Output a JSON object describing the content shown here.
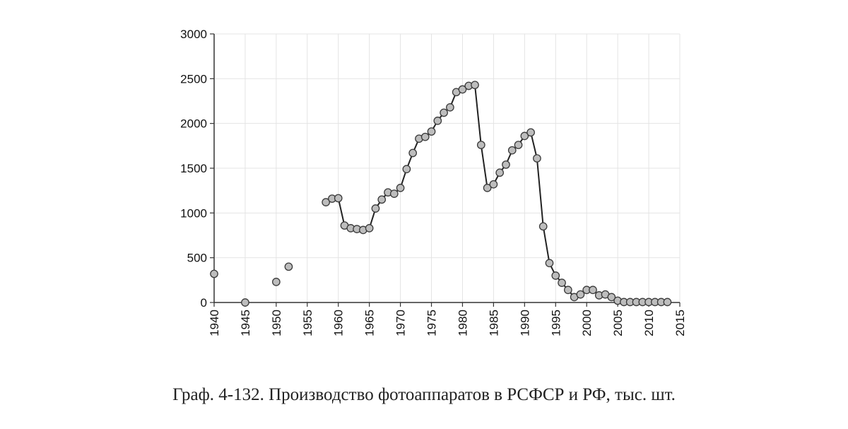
{
  "caption": "Граф. 4-132. Производство фотоаппаратов в РСФСР и РФ, тыс. шт.",
  "colors": {
    "line": "#222222",
    "marker_fill": "#bdbdbd",
    "marker_stroke": "#3a3a3a",
    "grid": "#e4e4e4"
  },
  "chart_data": {
    "type": "line",
    "title": "",
    "xlabel": "",
    "ylabel": "",
    "xlim": [
      1940,
      2015
    ],
    "ylim": [
      0,
      3000
    ],
    "x_ticks": [
      "1940",
      "1945",
      "1950",
      "1955",
      "1960",
      "1965",
      "1970",
      "1975",
      "1980",
      "1985",
      "1990",
      "1995",
      "2000",
      "2005",
      "2010",
      "2015"
    ],
    "y_ticks": [
      "0",
      "500",
      "1000",
      "1500",
      "2000",
      "2500",
      "3000"
    ],
    "grid": true,
    "markers": true,
    "x": [
      1940,
      1945,
      1950,
      1952,
      1958,
      1959,
      1960,
      1961,
      1962,
      1963,
      1964,
      1965,
      1966,
      1967,
      1968,
      1969,
      1970,
      1971,
      1972,
      1973,
      1974,
      1975,
      1976,
      1977,
      1978,
      1979,
      1980,
      1981,
      1982,
      1983,
      1984,
      1985,
      1986,
      1987,
      1988,
      1989,
      1990,
      1991,
      1992,
      1993,
      1994,
      1995,
      1996,
      1997,
      1998,
      1999,
      2000,
      2001,
      2002,
      2003,
      2004,
      2005,
      2006,
      2007,
      2008,
      2009,
      2010,
      2011,
      2012,
      2013
    ],
    "y": [
      320,
      0,
      230,
      400,
      1120,
      1160,
      1165,
      860,
      830,
      820,
      810,
      830,
      1050,
      1150,
      1230,
      1215,
      1280,
      1490,
      1670,
      1830,
      1850,
      1910,
      2030,
      2120,
      2180,
      2350,
      2380,
      2420,
      2430,
      1760,
      1280,
      1320,
      1450,
      1540,
      1700,
      1760,
      1860,
      1900,
      1610,
      850,
      440,
      300,
      220,
      140,
      60,
      90,
      140,
      140,
      80,
      90,
      60,
      20,
      5,
      5,
      5,
      5,
      5,
      5,
      5,
      5
    ],
    "segments": [
      [
        4,
        59
      ]
    ]
  }
}
